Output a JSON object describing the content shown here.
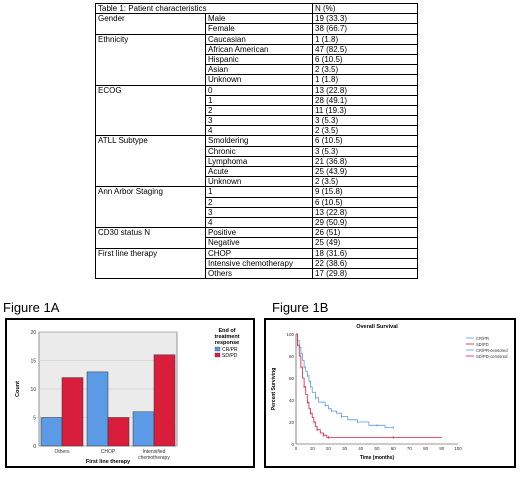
{
  "table": {
    "caption": "Table 1: Patient characteristics",
    "header_value": "N (%)",
    "groups": [
      {
        "name": "Gender",
        "rows": [
          [
            "Male",
            "19 (33.3)"
          ],
          [
            "Female",
            "38 (66.7)"
          ]
        ]
      },
      {
        "name": "Ethnicity",
        "rows": [
          [
            "Caucasian",
            "1 (1.8)"
          ],
          [
            "African American",
            "47 (82.5)"
          ],
          [
            "Hispanic",
            "6 (10.5)"
          ],
          [
            "Asian",
            "2 (3.5)"
          ],
          [
            "Unknown",
            "1 (1.8)"
          ]
        ]
      },
      {
        "name": "ECOG",
        "rows": [
          [
            "0",
            "13 (22.8)"
          ],
          [
            "1",
            "28 (49.1)"
          ],
          [
            "2",
            "11 (19.3)"
          ],
          [
            "3",
            "3 (5.3)"
          ],
          [
            "4",
            "2 (3.5)"
          ]
        ]
      },
      {
        "name": "ATLL Subtype",
        "rows": [
          [
            "Smoldering",
            "6 (10.5)"
          ],
          [
            "Chronic",
            "3 (5.3)"
          ],
          [
            "Lymphoma",
            "21 (36.8)"
          ],
          [
            "Acute",
            "25 (43.9)"
          ],
          [
            "Unknown",
            "2 (3.5)"
          ]
        ]
      },
      {
        "name": "Ann Arbor Staging",
        "rows": [
          [
            "1",
            "9 (15.8)"
          ],
          [
            "2",
            "6 (10.5)"
          ],
          [
            "3",
            "13 (22.8)"
          ],
          [
            "4",
            "29 (50.9)"
          ]
        ]
      },
      {
        "name": "CD30 status N",
        "rows": [
          [
            "Positive",
            "26 (51)"
          ],
          [
            "Negative",
            "25 (49)"
          ]
        ]
      },
      {
        "name": "First line therapy",
        "rows": [
          [
            "CHOP",
            "18 (31.6)"
          ],
          [
            "Intensive chemotherapy",
            "22 (38.6)"
          ],
          [
            "Others",
            "17 (29.8)"
          ]
        ]
      }
    ]
  },
  "fig1a_title": "Figure 1A",
  "fig1b_title": "Figure 1B",
  "chart_data": [
    {
      "type": "bar",
      "categories": [
        "Others",
        "CHOP",
        "Intensified\nchemotherapy"
      ],
      "series": [
        {
          "name": "CR/PR",
          "values": [
            5,
            13,
            6
          ],
          "color": "#5b9be6"
        },
        {
          "name": "SD/PD",
          "values": [
            12,
            5,
            16
          ],
          "color": "#d91e3c"
        }
      ],
      "xlabel": "First line therapy",
      "ylabel": "Count",
      "ylim": [
        0,
        20
      ],
      "yticks": [
        0,
        5,
        10,
        15,
        20
      ],
      "legend_title": "End of treatment response"
    },
    {
      "type": "line",
      "title": "Overall Survival",
      "xlabel": "Time (months)",
      "ylabel": "Percent Surviving",
      "xlim": [
        0,
        100
      ],
      "ylim": [
        0,
        100
      ],
      "xticks": [
        0,
        10,
        20,
        30,
        40,
        50,
        60,
        70,
        80,
        90,
        100
      ],
      "yticks": [
        0,
        20,
        40,
        60,
        80,
        100
      ],
      "legend": [
        "CR/PR",
        "SD/PD",
        "CR/PR-censored",
        "SD/PD-censored"
      ],
      "series": [
        {
          "name": "CR/PR",
          "color": "#5b9be6",
          "x": [
            0,
            1,
            2,
            3,
            4,
            5,
            6,
            7,
            8,
            9,
            10,
            12,
            14,
            18,
            20,
            22,
            25,
            28,
            32,
            38,
            45,
            50,
            55,
            60
          ],
          "y": [
            100,
            94,
            88,
            82,
            76,
            70,
            66,
            62,
            57,
            52,
            47,
            42,
            38,
            35,
            32,
            30,
            28,
            25,
            22,
            20,
            17,
            17,
            15,
            15
          ]
        },
        {
          "name": "SD/PD",
          "color": "#d91e3c",
          "x": [
            0,
            1,
            2,
            3,
            4,
            5,
            6,
            7,
            8,
            9,
            10,
            11,
            12,
            13,
            15,
            17,
            19,
            20,
            30,
            60,
            90
          ],
          "y": [
            100,
            90,
            80,
            70,
            60,
            52,
            45,
            38,
            32,
            28,
            24,
            20,
            16,
            13,
            10,
            8,
            6,
            6,
            6,
            6,
            6
          ]
        }
      ]
    }
  ]
}
